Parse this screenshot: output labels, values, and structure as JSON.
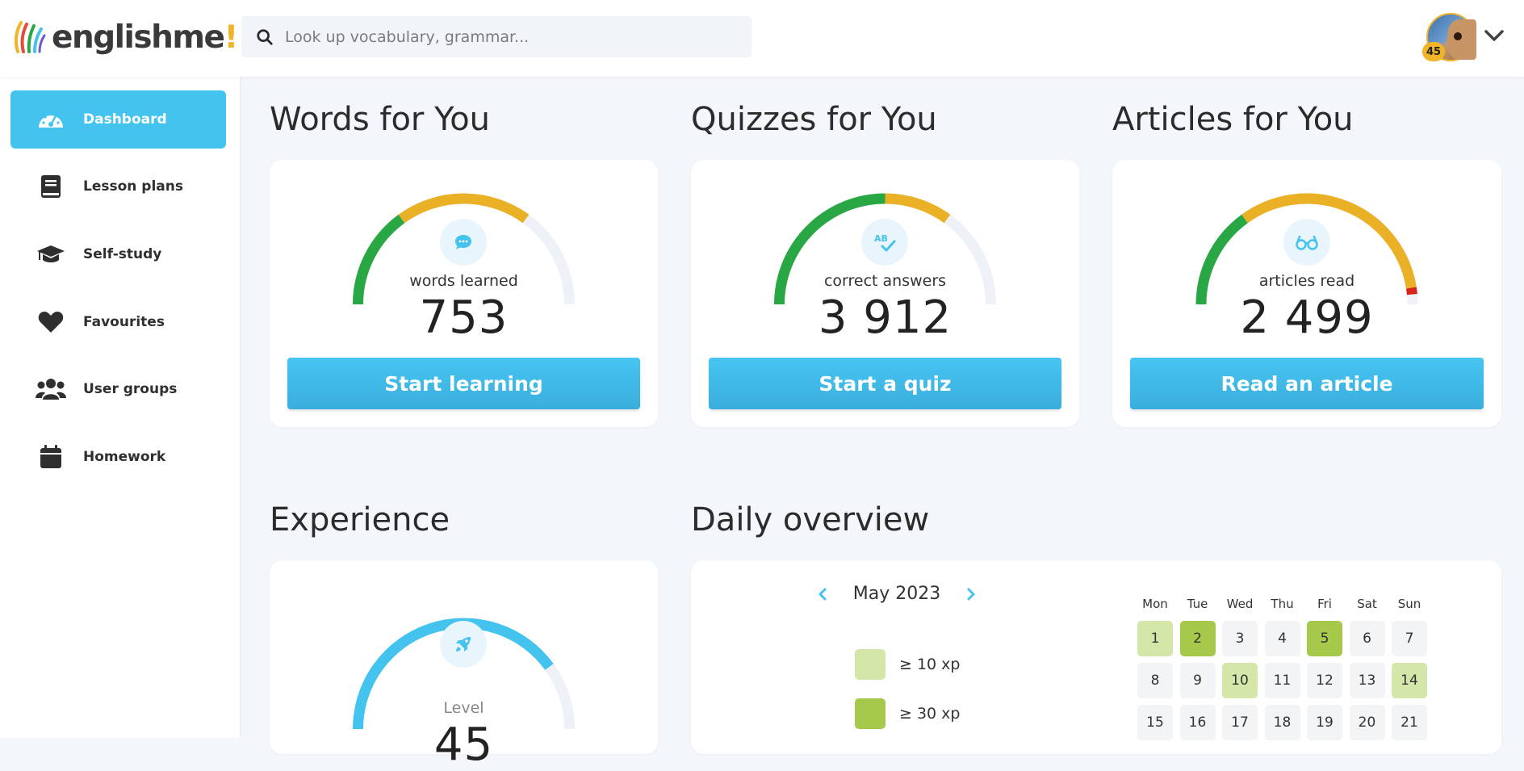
{
  "app": {
    "logo_text": "englishme",
    "logo_bang": "!",
    "search_placeholder": "Look up vocabulary, grammar...",
    "user_level_badge": "45"
  },
  "sidebar": {
    "items": [
      {
        "label": "Dashboard",
        "icon": "dashboard-gauge-icon",
        "active": true
      },
      {
        "label": "Lesson plans",
        "icon": "book-icon",
        "active": false
      },
      {
        "label": "Self-study",
        "icon": "graduation-cap-icon",
        "active": false
      },
      {
        "label": "Favourites",
        "icon": "heart-icon",
        "active": false
      },
      {
        "label": "User groups",
        "icon": "users-icon",
        "active": false
      },
      {
        "label": "Homework",
        "icon": "calendar-icon",
        "active": false
      }
    ]
  },
  "words": {
    "title": "Words for You",
    "label": "words learned",
    "value": "753",
    "button": "Start learning",
    "icon": "speech-bubble-icon",
    "gauge": {
      "green": 0.3,
      "yellow": 0.4
    }
  },
  "quizzes": {
    "title": "Quizzes for You",
    "label": "correct answers",
    "value": "3 912",
    "button": "Start a quiz",
    "icon": "spellcheck-icon",
    "gauge": {
      "green": 0.5,
      "yellow": 0.2
    }
  },
  "articles": {
    "title": "Articles for You",
    "label": "articles read",
    "value": "2 499",
    "button": "Read an article",
    "icon": "glasses-icon",
    "gauge": {
      "green": 0.3,
      "yellow": 0.65,
      "red": 0.02
    }
  },
  "experience": {
    "title": "Experience",
    "label": "Level",
    "value": "45",
    "icon": "rocket-icon",
    "gauge": {
      "fill": 0.8
    }
  },
  "daily_overview": {
    "title": "Daily overview",
    "month": "May 2023",
    "legend": [
      {
        "label": "≥ 10 xp",
        "color": "#d5e6a9"
      },
      {
        "label": "≥ 30 xp",
        "color": "#a6c94b"
      }
    ],
    "weekdays": [
      "Mon",
      "Tue",
      "Wed",
      "Thu",
      "Fri",
      "Sat",
      "Sun"
    ],
    "days": [
      {
        "day": "1",
        "level": 1
      },
      {
        "day": "2",
        "level": 2
      },
      {
        "day": "3",
        "level": 0
      },
      {
        "day": "4",
        "level": 0
      },
      {
        "day": "5",
        "level": 2
      },
      {
        "day": "6",
        "level": 0
      },
      {
        "day": "7",
        "level": 0
      },
      {
        "day": "8",
        "level": 0
      },
      {
        "day": "9",
        "level": 0
      },
      {
        "day": "10",
        "level": 1
      },
      {
        "day": "11",
        "level": 0
      },
      {
        "day": "12",
        "level": 0
      },
      {
        "day": "13",
        "level": 0
      },
      {
        "day": "14",
        "level": 1
      },
      {
        "day": "15",
        "level": 0
      },
      {
        "day": "16",
        "level": 0
      },
      {
        "day": "17",
        "level": 0
      },
      {
        "day": "18",
        "level": 0
      },
      {
        "day": "19",
        "level": 0
      },
      {
        "day": "20",
        "level": 0
      },
      {
        "day": "21",
        "level": 0
      }
    ]
  },
  "colors": {
    "accent": "#45c3ef",
    "green": "#2aa745",
    "yellow": "#eab026",
    "red": "#d9241c",
    "track": "#eef2f8"
  }
}
